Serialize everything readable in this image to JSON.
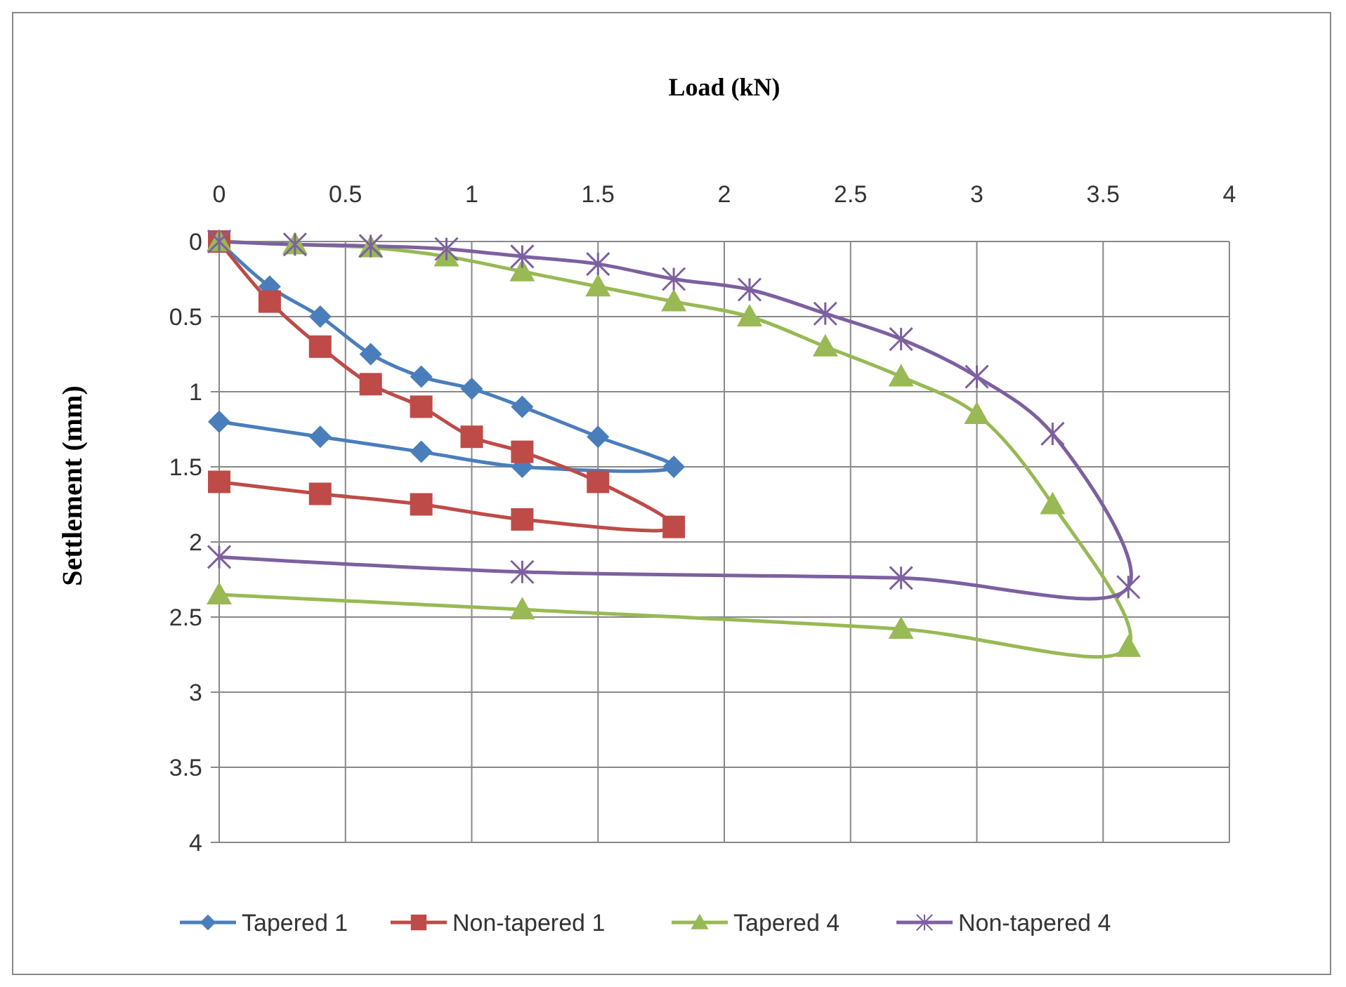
{
  "chart_data": {
    "type": "line",
    "xlabel": "Load (kN)",
    "ylabel": "Settlement (mm)",
    "xlim": [
      0,
      4
    ],
    "xticks": [
      0,
      0.5,
      1,
      1.5,
      2,
      2.5,
      3,
      3.5,
      4
    ],
    "ylim": [
      4,
      0
    ],
    "yticks": [
      0,
      0.5,
      1,
      1.5,
      2,
      2.5,
      3,
      3.5,
      4
    ],
    "grid": true,
    "legend": "bottom",
    "series": [
      {
        "name": "Tapered 1",
        "color": "#4a7ebb",
        "marker": "diamond",
        "x": [
          0,
          0.2,
          0.4,
          0.6,
          0.8,
          1.0,
          1.2,
          1.5,
          1.8,
          1.2,
          0.8,
          0.4,
          0
        ],
        "values": [
          0,
          0.3,
          0.5,
          0.75,
          0.9,
          0.98,
          1.1,
          1.3,
          1.5,
          1.5,
          1.4,
          1.3,
          1.2
        ]
      },
      {
        "name": "Non-tapered 1",
        "color": "#be4b48",
        "marker": "square",
        "x": [
          0,
          0.2,
          0.4,
          0.6,
          0.8,
          1.0,
          1.2,
          1.5,
          1.8,
          1.2,
          0.8,
          0.4,
          0
        ],
        "values": [
          0,
          0.4,
          0.7,
          0.95,
          1.1,
          1.3,
          1.4,
          1.6,
          1.9,
          1.85,
          1.75,
          1.68,
          1.6
        ]
      },
      {
        "name": "Tapered 4",
        "color": "#98b954",
        "marker": "triangle",
        "x": [
          0,
          0.3,
          0.6,
          0.9,
          1.2,
          1.5,
          1.8,
          2.1,
          2.4,
          2.7,
          3.0,
          3.3,
          3.6,
          2.7,
          1.2,
          0
        ],
        "values": [
          0,
          0.02,
          0.04,
          0.1,
          0.2,
          0.3,
          0.4,
          0.5,
          0.7,
          0.9,
          1.15,
          1.75,
          2.7,
          2.58,
          2.45,
          2.35
        ]
      },
      {
        "name": "Non-tapered 4",
        "color": "#7d60a0",
        "marker": "cross",
        "x": [
          0,
          0.3,
          0.6,
          0.9,
          1.2,
          1.5,
          1.8,
          2.1,
          2.4,
          2.7,
          3.0,
          3.3,
          3.6,
          2.7,
          1.2,
          0
        ],
        "values": [
          0,
          0.02,
          0.03,
          0.05,
          0.1,
          0.15,
          0.25,
          0.32,
          0.48,
          0.65,
          0.9,
          1.28,
          2.3,
          2.24,
          2.2,
          2.1
        ]
      }
    ]
  }
}
